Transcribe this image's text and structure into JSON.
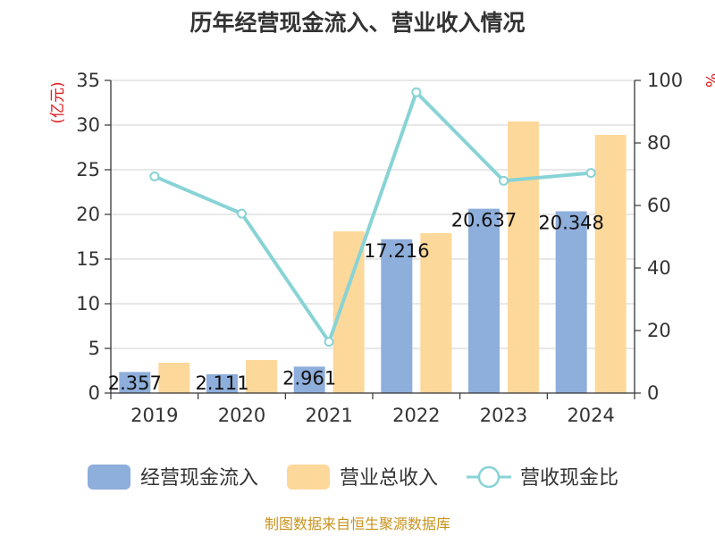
{
  "chart_data": {
    "type": "bar",
    "title": "历年经营现金流入、营业收入情况",
    "categories": [
      "2019",
      "2020",
      "2021",
      "2022",
      "2023",
      "2024"
    ],
    "y_left": {
      "label": "(亿元)",
      "ylim": [
        0,
        35
      ],
      "ticks": [
        0,
        5,
        10,
        15,
        20,
        25,
        30,
        35
      ]
    },
    "y_right": {
      "label": "%",
      "ylim": [
        0,
        100
      ],
      "ticks": [
        0,
        20,
        40,
        60,
        80,
        100
      ]
    },
    "series": [
      {
        "name": "经营现金流入",
        "type": "bar",
        "axis": "left",
        "color": "#8eaedb",
        "values": [
          2.357,
          2.111,
          2.961,
          17.216,
          20.637,
          20.348
        ],
        "labels": [
          "2.357",
          "2.111",
          "2.961",
          "17.216",
          "20.637",
          "20.348"
        ]
      },
      {
        "name": "营业总收入",
        "type": "bar",
        "axis": "left",
        "color": "#fdd89b",
        "values": [
          3.4,
          3.7,
          18.1,
          17.9,
          30.4,
          28.9
        ]
      },
      {
        "name": "营收现金比",
        "type": "line",
        "axis": "right",
        "color": "#88d3d6",
        "values": [
          69.3,
          57.4,
          16.4,
          96.2,
          67.9,
          70.4
        ]
      }
    ],
    "grid": true,
    "legend": "bottom"
  },
  "source": "制图数据来自恒生聚源数据库"
}
